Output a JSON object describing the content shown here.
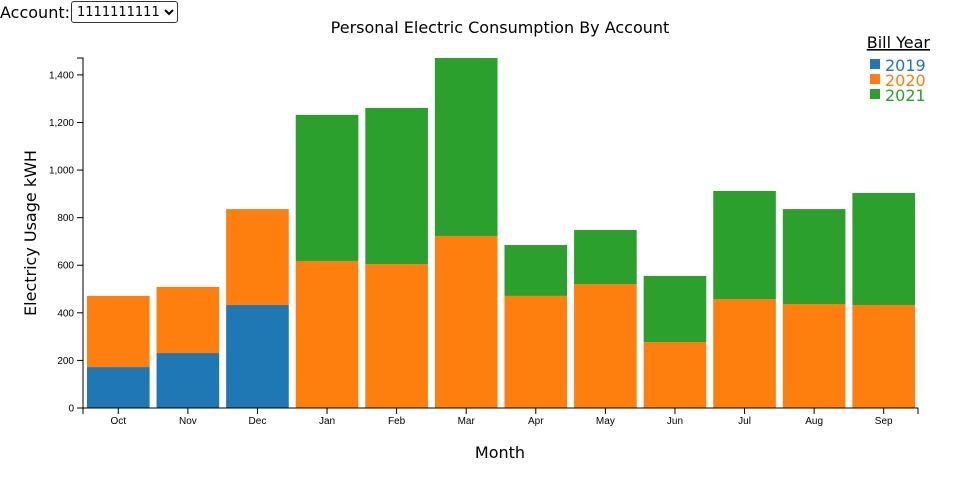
{
  "account": {
    "label": "Account:",
    "selected": "1111111111"
  },
  "chart_data": {
    "type": "bar",
    "stacked": true,
    "title": "Personal Electric Consumption By Account",
    "xlabel": "Month",
    "ylabel": "Electricy Usage kWH",
    "ylim": [
      0,
      1471
    ],
    "yticks": [
      "0",
      "200",
      "400",
      "600",
      "800",
      "1,000",
      "1,200",
      "1,400"
    ],
    "ytick_values": [
      0,
      200,
      400,
      600,
      800,
      1000,
      1200,
      1400
    ],
    "categories": [
      "Oct",
      "Nov",
      "Dec",
      "Jan",
      "Feb",
      "Mar",
      "Apr",
      "May",
      "Jun",
      "Jul",
      "Aug",
      "Sep"
    ],
    "legend": {
      "title": "Bill Year",
      "position": "top-right"
    },
    "series": [
      {
        "name": "2019",
        "color": "#1f77b4",
        "values": [
          172,
          231,
          433,
          0,
          0,
          0,
          0,
          0,
          0,
          0,
          0,
          0
        ]
      },
      {
        "name": "2020",
        "color": "#ff7f0e",
        "values": [
          299,
          278,
          403,
          618,
          605,
          723,
          471,
          521,
          277,
          458,
          437,
          433
        ]
      },
      {
        "name": "2021",
        "color": "#2ca02c",
        "values": [
          0,
          0,
          0,
          614,
          656,
          748,
          214,
          227,
          278,
          454,
          399,
          471
        ]
      }
    ]
  }
}
